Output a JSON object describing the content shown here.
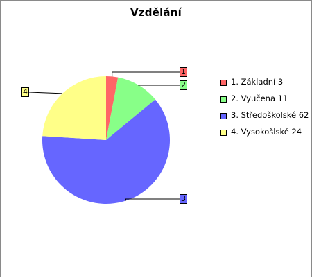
{
  "chart_data": {
    "type": "pie",
    "title": "Vzdělání",
    "slices": [
      {
        "callout": "1",
        "label": "1. Základní 3",
        "value": 3,
        "color": "#ff6666"
      },
      {
        "callout": "2",
        "label": "2. Vyučena 11",
        "value": 11,
        "color": "#88ff88"
      },
      {
        "callout": "3",
        "label": "3. Středoškolské 62",
        "value": 62,
        "color": "#6666ff"
      },
      {
        "callout": "4",
        "label": "4. Vysokošlské 24",
        "value": 24,
        "color": "#ffff88"
      }
    ],
    "legend_position": "right"
  }
}
